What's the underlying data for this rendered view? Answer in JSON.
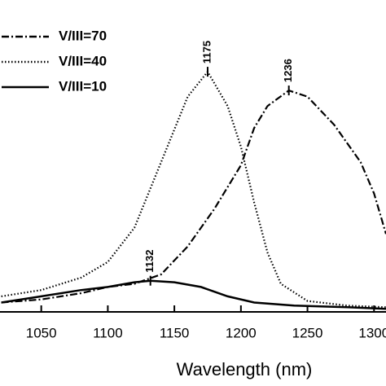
{
  "chart_data": {
    "type": "line",
    "x_label": "Wavelength (nm)",
    "xlim": [
      1019,
      1309
    ],
    "xticks": [
      1050,
      1100,
      1150,
      1200,
      1250,
      1300
    ],
    "ylim": [
      0,
      1
    ],
    "legend": "upper left",
    "series": [
      {
        "name": "V/III=70",
        "color": "#000000",
        "style": "dashdot",
        "x": [
          1020,
          1050,
          1080,
          1100,
          1120,
          1140,
          1160,
          1180,
          1200,
          1210,
          1220,
          1236,
          1250,
          1270,
          1290,
          1300,
          1309
        ],
        "values": [
          0.03,
          0.04,
          0.06,
          0.08,
          0.09,
          0.12,
          0.21,
          0.33,
          0.47,
          0.59,
          0.66,
          0.71,
          0.69,
          0.6,
          0.48,
          0.38,
          0.25
        ]
      },
      {
        "name": "V/III=40",
        "color": "#000000",
        "style": "dotted",
        "x": [
          1020,
          1050,
          1080,
          1100,
          1120,
          1140,
          1160,
          1175,
          1190,
          1200,
          1210,
          1220,
          1230,
          1250,
          1280,
          1309
        ],
        "values": [
          0.05,
          0.07,
          0.11,
          0.16,
          0.27,
          0.48,
          0.69,
          0.77,
          0.66,
          0.53,
          0.35,
          0.19,
          0.09,
          0.035,
          0.02,
          0.015
        ]
      },
      {
        "name": "V/III=10",
        "color": "#000000",
        "style": "solid",
        "x": [
          1020,
          1050,
          1080,
          1100,
          1120,
          1132,
          1150,
          1170,
          1190,
          1210,
          1240,
          1280,
          1309
        ],
        "values": [
          0.03,
          0.05,
          0.07,
          0.08,
          0.095,
          0.1,
          0.095,
          0.08,
          0.05,
          0.03,
          0.02,
          0.015,
          0.01
        ]
      }
    ],
    "annotations": [
      {
        "text": "1175",
        "x": 1175,
        "y": 0.77
      },
      {
        "text": "1236",
        "x": 1236,
        "y": 0.71
      },
      {
        "text": "1132",
        "x": 1132,
        "y": 0.1
      }
    ]
  }
}
